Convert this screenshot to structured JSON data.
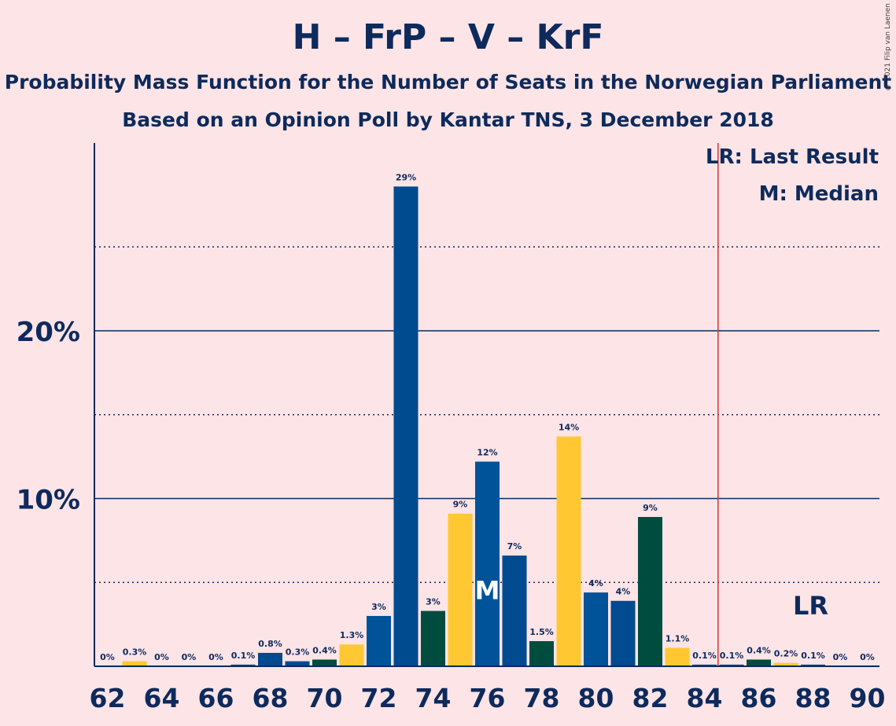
{
  "title": "H – FrP – V – KrF",
  "subtitle1": "Probability Mass Function for the Number of Seats in the Norwegian Parliament",
  "subtitle2": "Based on an Opinion Poll by Kantar TNS, 3 December 2018",
  "copyright": "© 2021 Filip van Laenen",
  "legend": {
    "lr": "LR: Last Result",
    "m": "M: Median"
  },
  "colors": {
    "background": "#fde4e6",
    "blue": "#004a8f",
    "midblue": "#005399",
    "yellow": "#ffc832",
    "green": "#004d40",
    "text": "#0d2a5c",
    "lr_line": "#e03030"
  },
  "chart_data": {
    "type": "bar",
    "xlabel": "",
    "ylabel": "",
    "x_ticks": [
      "62",
      "64",
      "66",
      "68",
      "70",
      "72",
      "74",
      "76",
      "78",
      "80",
      "82",
      "84",
      "86",
      "88",
      "90"
    ],
    "y_ticks": [
      "10%",
      "20%"
    ],
    "ylim": [
      0,
      31
    ],
    "grid": "dotted at 5%, 15%, 25%; solid at 10%, 20%",
    "last_result_seat": 84.5,
    "last_result_label": "LR",
    "median_seat": 76,
    "median_label": "M",
    "bars": [
      {
        "seat": 62,
        "value": 0.0,
        "label": "0%",
        "color": "blue"
      },
      {
        "seat": 63,
        "value": 0.3,
        "label": "0.3%",
        "color": "yellow"
      },
      {
        "seat": 64,
        "value": 0.0,
        "label": "0%",
        "color": "blue"
      },
      {
        "seat": 65,
        "value": 0.0,
        "label": "0%",
        "color": "blue"
      },
      {
        "seat": 66,
        "value": 0.0,
        "label": "0%",
        "color": "blue"
      },
      {
        "seat": 67,
        "value": 0.1,
        "label": "0.1%",
        "color": "blue"
      },
      {
        "seat": 68,
        "value": 0.8,
        "label": "0.8%",
        "color": "blue"
      },
      {
        "seat": 69,
        "value": 0.3,
        "label": "0.3%",
        "color": "blue"
      },
      {
        "seat": 70,
        "value": 0.4,
        "label": "0.4%",
        "color": "green"
      },
      {
        "seat": 71,
        "value": 1.3,
        "label": "1.3%",
        "color": "yellow"
      },
      {
        "seat": 72,
        "value": 3.0,
        "label": "3%",
        "color": "midblue"
      },
      {
        "seat": 73,
        "value": 28.6,
        "label": "29%",
        "color": "blue"
      },
      {
        "seat": 74,
        "value": 3.3,
        "label": "3%",
        "color": "green"
      },
      {
        "seat": 75,
        "value": 9.1,
        "label": "9%",
        "color": "yellow"
      },
      {
        "seat": 76,
        "value": 12.2,
        "label": "12%",
        "color": "midblue"
      },
      {
        "seat": 77,
        "value": 6.6,
        "label": "7%",
        "color": "blue"
      },
      {
        "seat": 78,
        "value": 1.5,
        "label": "1.5%",
        "color": "green"
      },
      {
        "seat": 79,
        "value": 13.7,
        "label": "14%",
        "color": "yellow"
      },
      {
        "seat": 80,
        "value": 4.4,
        "label": "4%",
        "color": "midblue"
      },
      {
        "seat": 81,
        "value": 3.9,
        "label": "4%",
        "color": "blue"
      },
      {
        "seat": 82,
        "value": 8.9,
        "label": "9%",
        "color": "green"
      },
      {
        "seat": 83,
        "value": 1.1,
        "label": "1.1%",
        "color": "yellow"
      },
      {
        "seat": 84,
        "value": 0.1,
        "label": "0.1%",
        "color": "blue"
      },
      {
        "seat": 85,
        "value": 0.1,
        "label": "0.1%",
        "color": "blue"
      },
      {
        "seat": 86,
        "value": 0.4,
        "label": "0.4%",
        "color": "green"
      },
      {
        "seat": 87,
        "value": 0.2,
        "label": "0.2%",
        "color": "yellow"
      },
      {
        "seat": 88,
        "value": 0.1,
        "label": "0.1%",
        "color": "blue"
      },
      {
        "seat": 89,
        "value": 0.0,
        "label": "0%",
        "color": "blue"
      },
      {
        "seat": 90,
        "value": 0.0,
        "label": "0%",
        "color": "blue"
      }
    ]
  }
}
